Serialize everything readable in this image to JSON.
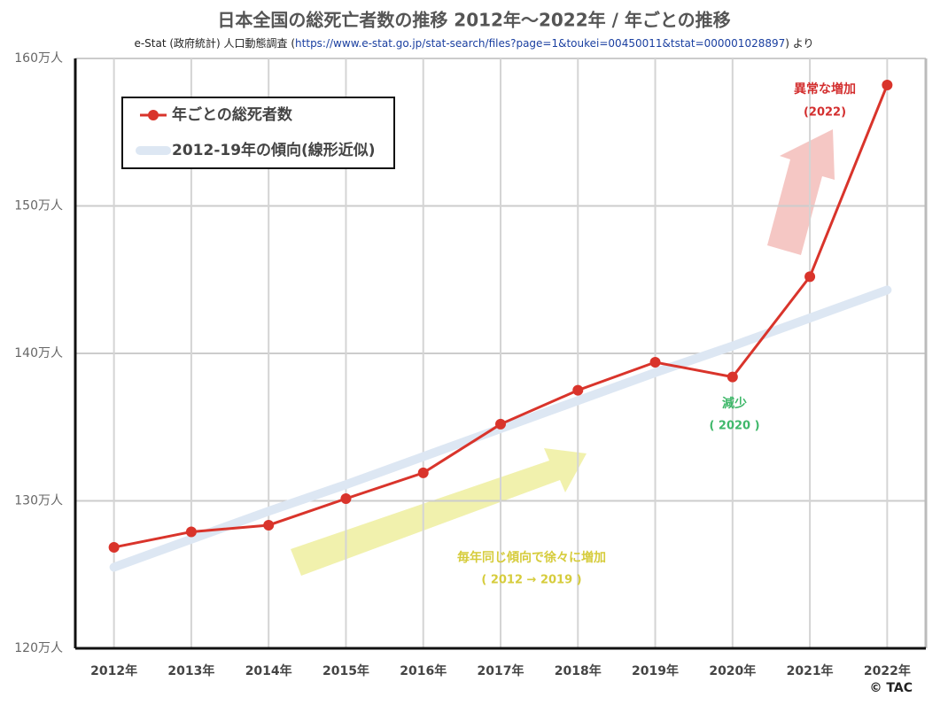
{
  "chart_data": {
    "type": "line",
    "title": "日本全国の総死亡者数の推移 2012年～2022年 / 年ごとの推移",
    "subtitle": [
      "e-Stat (政府統計) 人口動態調査 (",
      "https://www.e-stat.go.jp/stat-search/files?page=1&toukei=00450011&tstat=000001028897",
      ") より"
    ],
    "categories": [
      "2012年",
      "2013年",
      "2014年",
      "2015年",
      "2016年",
      "2017年",
      "2018年",
      "2019年",
      "2020年",
      "2021年",
      "2022年"
    ],
    "series": [
      {
        "name": "年ごとの総死者数",
        "color": "#d9342b",
        "values": [
          126.85,
          127.9,
          128.35,
          130.15,
          131.9,
          135.2,
          137.5,
          139.4,
          138.4,
          145.2,
          158.2
        ]
      },
      {
        "name": "2012-19年の傾向(線形近似)",
        "color": "#dde7f3",
        "values": [
          125.5,
          127.4,
          129.3,
          131.1,
          133.0,
          134.9,
          136.8,
          138.7,
          140.5,
          142.4,
          144.3
        ]
      }
    ],
    "ylim": [
      120,
      160
    ],
    "yticks": [
      {
        "value": 120,
        "label": "120万人"
      },
      {
        "value": 130,
        "label": "130万人"
      },
      {
        "value": 140,
        "label": "140万人"
      },
      {
        "value": 150,
        "label": "150万人"
      },
      {
        "value": 160,
        "label": "160万人"
      }
    ],
    "grid": true,
    "legend": "top-left",
    "annotations": [
      "異常な増加",
      "(2022)",
      "減少",
      "( 2020 )",
      "毎年同じ傾向で徐々に増加",
      "( 2012 → 2019 )"
    ],
    "copyright": "© TAC"
  }
}
